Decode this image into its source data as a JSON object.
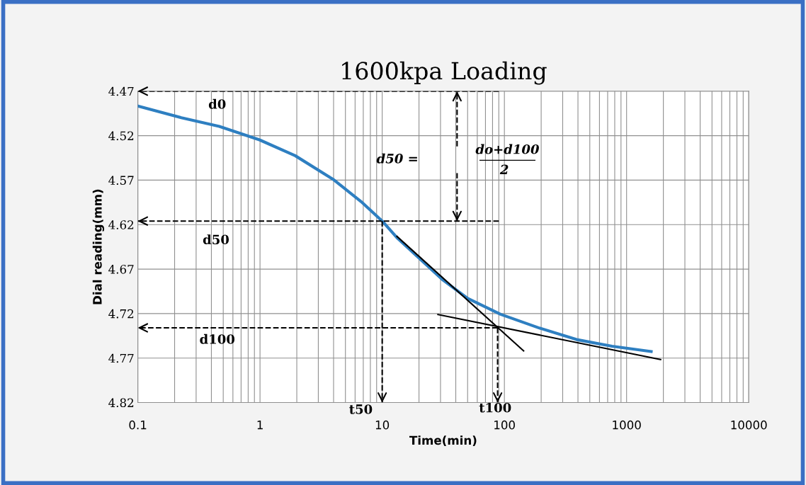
{
  "chart_data": {
    "type": "line",
    "title": "1600kpa Loading",
    "xlabel": "Time(min)",
    "ylabel": "Dial reading(mm)",
    "log": "x",
    "grid": true,
    "xlim": [
      0.1,
      10000
    ],
    "xticks": [
      0.1,
      1,
      10,
      100,
      1000,
      10000
    ],
    "ylim": [
      4.82,
      4.47
    ],
    "yticks": [
      4.47,
      4.52,
      4.57,
      4.62,
      4.67,
      4.72,
      4.77,
      4.82
    ],
    "series": [
      {
        "color": "#2e7fc1",
        "line_style": "solid",
        "x": [
          0.1,
          0.227,
          0.464,
          0.99,
          1.94,
          3.96,
          6.7,
          10,
          13.2,
          31.5,
          50,
          93,
          190,
          390,
          760,
          1590
        ],
        "values": [
          4.4866,
          4.4998,
          4.5095,
          4.5247,
          4.5425,
          4.569,
          4.594,
          4.616,
          4.6347,
          4.6824,
          4.7029,
          4.7208,
          4.7359,
          4.7492,
          4.7567,
          4.7626
        ]
      },
      {
        "color": "#000000",
        "line_style": "solid",
        "x": [
          13.2,
          143.6
        ],
        "values": [
          4.6332,
          4.7619
        ]
      },
      {
        "color": "#000000",
        "line_style": "solid",
        "x": [
          28.6,
          1897
        ],
        "values": [
          4.721,
          4.7716
        ]
      },
      {
        "color": "#000000",
        "line_style": "dashed",
        "x": [
          90,
          0.1
        ],
        "values": [
          4.47,
          4.47
        ]
      },
      {
        "color": "#000000",
        "line_style": "dashed",
        "x": [
          90,
          0.1
        ],
        "values": [
          4.616,
          4.616
        ]
      },
      {
        "color": "#000000",
        "line_style": "dashed",
        "x": [
          88,
          0.1
        ],
        "values": [
          4.736,
          4.736
        ]
      },
      {
        "color": "#000000",
        "line_style": "dashed",
        "x": [
          10,
          10
        ],
        "values": [
          4.616,
          4.82
        ]
      },
      {
        "color": "#000000",
        "line_style": "dashed",
        "x": [
          88,
          88
        ],
        "values": [
          4.736,
          4.82
        ]
      },
      {
        "color": "#000000",
        "line_style": "dashed",
        "x": [
          41,
          41
        ],
        "values": [
          4.532,
          4.47
        ]
      },
      {
        "color": "#000000",
        "line_style": "dashed",
        "x": [
          41,
          41
        ],
        "values": [
          4.562,
          4.616
        ]
      }
    ],
    "annotations": [
      "d0",
      "d50",
      "d100",
      "t50",
      "t100",
      "d50 =",
      "do+d100",
      "2"
    ]
  }
}
